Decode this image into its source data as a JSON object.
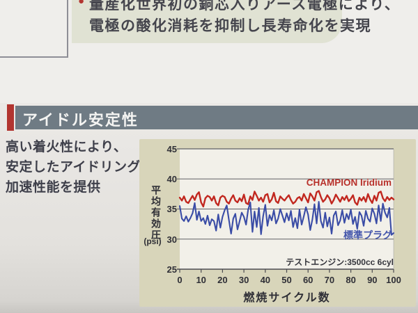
{
  "top_note": {
    "bullet": "●",
    "line1": "量産化世界初の銅芯入りアース電極により、",
    "line2": "電極の酸化消耗を抑制し長寿命化を実現"
  },
  "section_title": "アイドル安定性",
  "description": {
    "line1": "高い着火性により、",
    "line2": "安定したアイドリング・",
    "line3": "加速性能を提供"
  },
  "chart_data": {
    "type": "line",
    "title": "",
    "xlabel": "燃焼サイクル数",
    "ylabel": "平均有効圧",
    "ylabel_unit": "(psi)",
    "xlim": [
      0,
      100
    ],
    "ylim": [
      25,
      45
    ],
    "xticks": [
      0,
      10,
      20,
      30,
      40,
      50,
      60,
      70,
      80,
      90,
      100
    ],
    "yticks": [
      45,
      40,
      35,
      30,
      25
    ],
    "grid": true,
    "legend_position": "inline",
    "annotation": "テストエンジン:3500cc 6cyl",
    "series": [
      {
        "name": "CHAMPION Iridium",
        "color": "#c1271f",
        "values": [
          36.9,
          36.4,
          37.1,
          36.2,
          36.0,
          36.6,
          37.2,
          36.5,
          37.4,
          37.8,
          36.1,
          35.4,
          36.8,
          37.2,
          37.0,
          36.4,
          37.1,
          36.0,
          35.6,
          36.9,
          37.2,
          37.0,
          36.2,
          35.9,
          36.7,
          37.3,
          36.4,
          36.1,
          36.8,
          36.3,
          37.4,
          36.0,
          35.8,
          37.1,
          36.5,
          37.9,
          37.2,
          36.4,
          36.9,
          36.2,
          37.3,
          37.5,
          36.1,
          36.6,
          37.7,
          36.3,
          36.0,
          37.1,
          36.7,
          36.4,
          36.9,
          37.3,
          36.5,
          35.9,
          36.2,
          36.8,
          37.0,
          36.4,
          37.5,
          36.8,
          36.1,
          37.6,
          37.1,
          36.4,
          37.8,
          38.0,
          37.0,
          36.2,
          36.6,
          37.3,
          36.8,
          35.9,
          36.5,
          37.4,
          36.8,
          36.2,
          37.0,
          36.5,
          37.2,
          36.3,
          36.7,
          37.3,
          36.1,
          35.7,
          36.9,
          36.4,
          37.0,
          36.2,
          37.5,
          36.6,
          36.0,
          37.2,
          36.4,
          37.7,
          37.9,
          36.8,
          36.3,
          37.0,
          36.5,
          36.9,
          36.6
        ]
      },
      {
        "name": "標準プラグ",
        "color": "#3a4ca6",
        "values": [
          35.5,
          33.4,
          33.0,
          33.8,
          32.9,
          33.5,
          34.3,
          36.0,
          33.2,
          34.6,
          33.0,
          33.5,
          32.5,
          33.9,
          32.3,
          33.3,
          33.0,
          31.4,
          34.1,
          31.9,
          33.7,
          34.8,
          35.6,
          33.2,
          30.9,
          33.4,
          34.2,
          31.6,
          33.0,
          34.4,
          33.7,
          32.4,
          34.9,
          36.1,
          31.2,
          34.6,
          32.0,
          35.2,
          30.8,
          33.8,
          35.7,
          32.2,
          34.0,
          33.1,
          34.8,
          32.6,
          33.4,
          35.0,
          33.9,
          32.8,
          34.3,
          33.1,
          34.7,
          32.0,
          33.5,
          31.8,
          34.9,
          32.4,
          33.8,
          35.3,
          34.1,
          31.5,
          33.2,
          35.8,
          32.6,
          36.2,
          33.0,
          31.9,
          34.4,
          32.1,
          33.6,
          30.9,
          33.9,
          34.6,
          32.3,
          33.1,
          34.8,
          32.7,
          34.2,
          33.3,
          34.9,
          32.5,
          33.7,
          31.7,
          34.5,
          33.9,
          32.2,
          34.7,
          33.4,
          32.9,
          35.1,
          34.2,
          32.6,
          35.6,
          33.0,
          35.9,
          34.4,
          33.6,
          35.2,
          30.7,
          31.0
        ]
      }
    ]
  },
  "colors": {
    "paper": "#eae8e5",
    "band": "#6f7b84",
    "accent_red": "#b23530",
    "panel_bg": "#d8d5ba",
    "plot_bg": "#f2f0e9",
    "grid": "#606066",
    "series_red": "#c1271f",
    "series_blue": "#3a4ca6",
    "text_dark": "#3e3f4a"
  }
}
